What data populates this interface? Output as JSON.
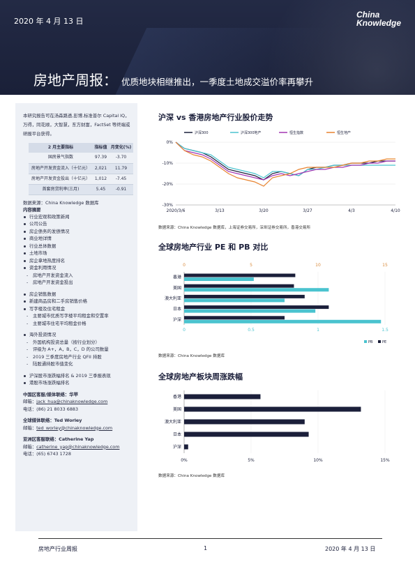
{
  "header": {
    "date": "2020 年 4 月 13 日",
    "logo_line1": "China",
    "logo_line2": "Knowledge",
    "title_main": "房地产周报：",
    "title_sub": "优质地块相继推出，一季度土地成交溢价率再攀升"
  },
  "sidebar": {
    "intro": "本研究报告可在汤森路透,彭博,标准普尔 Capital IQ，万得，同花顺，大智慧，东方财富，FactSet 等终端或研报平台获得。",
    "table": {
      "headers": [
        "2 月主要指标",
        "指标值",
        "月变化(%)"
      ],
      "rows": [
        {
          "name": "国房景气指数",
          "value": "97.39",
          "change": "-3.70"
        },
        {
          "name": "房地产开发资金流入（十亿元）",
          "value": "2,021",
          "change": "11.79"
        },
        {
          "name": "房地产开发资金投出（十亿元）",
          "value": "1,012",
          "change": "-7.45"
        },
        {
          "name": "首套房贷利率(三月)",
          "value": "5.45",
          "change": "-0.91"
        }
      ]
    },
    "table_source": "数据来源：China Knowledge 数据库",
    "toc_heading": "内容摘要",
    "toc": [
      {
        "text": "行业宏观和政策新闻",
        "kind": "b"
      },
      {
        "text": "公司公告",
        "kind": "b"
      },
      {
        "text": "房企债务的发债情况",
        "kind": "b"
      },
      {
        "text": "商业地详情",
        "kind": "b"
      },
      {
        "text": "行业总体数据",
        "kind": "b"
      },
      {
        "text": "土地市场",
        "kind": "b"
      },
      {
        "text": "房企拿地热度排名",
        "kind": "b"
      },
      {
        "text": "资金利用情况",
        "kind": "b"
      },
      {
        "text": "房地产开发资金流入",
        "kind": "d"
      },
      {
        "text": "房地产开发资金投出",
        "kind": "d"
      },
      {
        "text": "房企销售数据",
        "kind": "b",
        "gap": true
      },
      {
        "text": "新建商品房和二手房销售价格",
        "kind": "b"
      },
      {
        "text": "写字楼及住宅租金",
        "kind": "b"
      },
      {
        "text": "主要城市优质写字楼平均租金和空置率",
        "kind": "d"
      },
      {
        "text": "主要城市住宅平均租金价格",
        "kind": "d"
      },
      {
        "text": "海外投资情况",
        "kind": "b",
        "gap": true
      },
      {
        "text": "外国机构投资总量（按行业划分）",
        "kind": "d"
      },
      {
        "text": "评级为 A+，A，B，C，D 的公司数量",
        "kind": "d"
      },
      {
        "text": "2019 三季度房地产行业 QFII 持股",
        "kind": "d"
      },
      {
        "text": "陆股通持股市值变化",
        "kind": "d"
      },
      {
        "text": "沪深股市涨跌幅排名 & 2019 三季报表现",
        "kind": "b",
        "gap": true
      },
      {
        "text": "港股市场涨跌幅排名",
        "kind": "b"
      }
    ],
    "contacts": [
      {
        "title": "中国区客服/媒体联络：华苹",
        "email_label": "邮箱：",
        "email": "jack_hua@chinaknowledge.com",
        "phone": "电话：(86) 21 8033 6883"
      },
      {
        "title": "全球媒体联络：Ted Worley",
        "email_label": "邮箱：",
        "email": "ted_worley@chinaknowledge.com",
        "phone": ""
      },
      {
        "title": "亚洲区客服联络：Catherine Yap",
        "email_label": "邮箱：",
        "email": "catherine_yap@chinaknowledge.com",
        "phone": "电话：(65) 6743 1728"
      }
    ]
  },
  "charts": {
    "line": {
      "title": "沪深  vs  香港房地产行业股价走势",
      "source": "数据来源：China Knowledge 数据库，上海证券交易所，深圳证券交易所，香港交易所"
    },
    "pepb": {
      "title": "全球房地产行业  PE  和  PB  对比",
      "source": "数据来源：China Knowledge 数据库"
    },
    "weekly": {
      "title": "全球房地产板块周涨跌幅",
      "source": "数据来源：China Knowledge 数据库"
    }
  },
  "chart_data": [
    {
      "type": "line",
      "x": [
        "2020/3/6",
        "3/9",
        "3/10",
        "3/11",
        "3/12",
        "3/13",
        "3/16",
        "3/17",
        "3/18",
        "3/19",
        "3/20",
        "3/23",
        "3/24",
        "3/25",
        "3/26",
        "3/27",
        "3/30",
        "3/31",
        "4/1",
        "4/2",
        "4/3",
        "4/6",
        "4/7",
        "4/8",
        "4/9",
        "4/10"
      ],
      "x_ticks": [
        "2020/3/6",
        "3/13",
        "3/20",
        "3/27",
        "4/3",
        "4/10"
      ],
      "ylim": [
        -30,
        0
      ],
      "y_ticks": [
        "0%",
        "-10%",
        "-20%",
        "-30%"
      ],
      "series": [
        {
          "name": "沪深300",
          "color": "#1b1f3a",
          "values": [
            0,
            -3,
            -4,
            -5,
            -7,
            -10,
            -13,
            -14,
            -15,
            -16,
            -18,
            -15,
            -14,
            -15,
            -16,
            -13,
            -12,
            -12,
            -11,
            -11,
            -10,
            -10,
            -10,
            -9,
            -9,
            -9
          ]
        },
        {
          "name": "沪深300地产",
          "color": "#4ac3cf",
          "values": [
            0,
            -3,
            -4,
            -5,
            -6,
            -9,
            -12,
            -13,
            -14,
            -15,
            -17,
            -14,
            -14,
            -15,
            -16,
            -13,
            -13,
            -12,
            -11,
            -11,
            -11,
            -11,
            -11,
            -11,
            -11,
            -11
          ]
        },
        {
          "name": "恒生指数",
          "color": "#a236b3",
          "values": [
            0,
            -4,
            -5,
            -6,
            -8,
            -11,
            -14,
            -15,
            -16,
            -17,
            -18,
            -16,
            -15,
            -16,
            -15,
            -14,
            -13,
            -13,
            -12,
            -12,
            -11,
            -11,
            -10,
            -10,
            -9,
            -9
          ]
        },
        {
          "name": "恒生地产",
          "color": "#e8832f",
          "values": [
            0,
            -4,
            -6,
            -7,
            -9,
            -12,
            -15,
            -17,
            -18,
            -19,
            -21,
            -17,
            -16,
            -15,
            -13,
            -12,
            -12,
            -12,
            -12,
            -11,
            -10,
            -10,
            -9,
            -9,
            -8,
            -8
          ]
        }
      ]
    },
    {
      "type": "bar",
      "categories": [
        "香港",
        "美国",
        "澳大利亚",
        "日本",
        "沪深"
      ],
      "series": [
        {
          "name": "PB",
          "color": "#4ac3cf",
          "axis": "bottom",
          "values": [
            0.52,
            1.08,
            0.75,
            0.98,
            1.47
          ]
        },
        {
          "name": "PE",
          "color": "#1b1f3a",
          "axis": "top",
          "values": [
            8.3,
            8.2,
            9.0,
            10.8,
            7.5
          ]
        }
      ],
      "x_top": {
        "range": [
          0,
          15
        ],
        "ticks": [
          "0",
          "5",
          "10",
          "15"
        ]
      },
      "x_bottom": {
        "range": [
          0,
          1.5
        ],
        "ticks": [
          "0",
          "0.5",
          "1",
          "1.5"
        ]
      },
      "legend": "bottom-right"
    },
    {
      "type": "bar",
      "categories": [
        "香港",
        "美国",
        "澳大利亚",
        "日本",
        "沪深"
      ],
      "values": [
        5.7,
        13.2,
        9.0,
        9.3,
        0.3
      ],
      "color": "#1b1f3a",
      "xlim": [
        0,
        15
      ],
      "x_ticks": [
        "0%",
        "5%",
        "10%",
        "15%"
      ]
    }
  ],
  "footer": {
    "left": "房地产行业周报",
    "page": "1",
    "right": "2020 年 4 月 13 日"
  }
}
